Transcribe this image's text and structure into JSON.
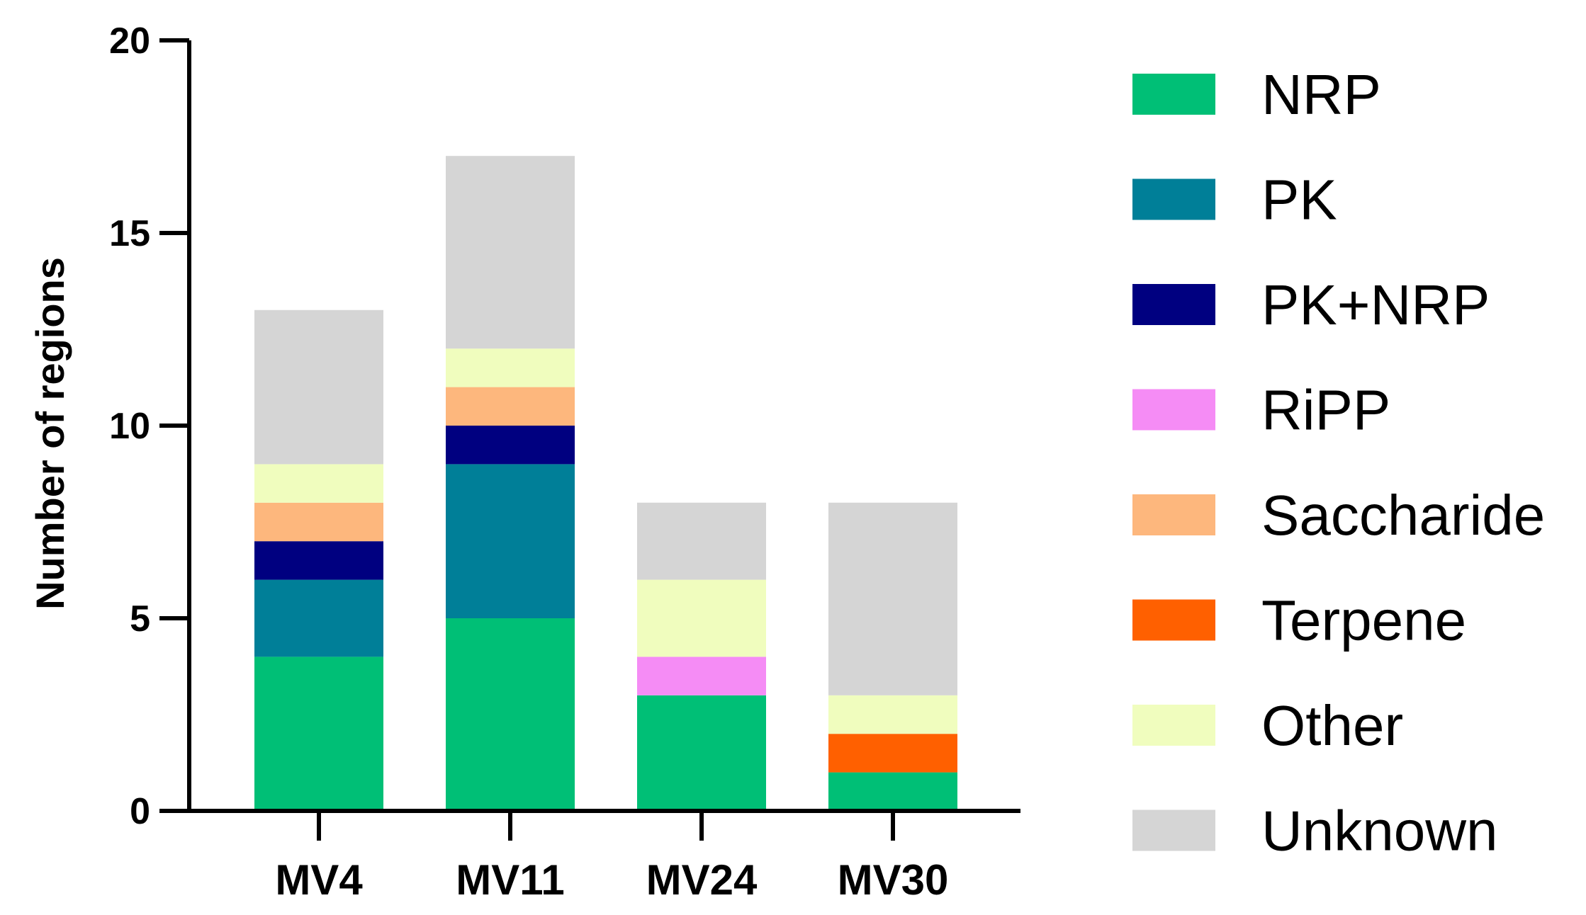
{
  "chart_data": {
    "type": "bar",
    "stacked": true,
    "title": "",
    "xlabel": "",
    "ylabel": "Number of regions",
    "ylim": [
      0,
      20
    ],
    "yticks": [
      0,
      5,
      10,
      15,
      20
    ],
    "ytick_labels": [
      "0",
      "5",
      "10",
      "15",
      "20"
    ],
    "grid": false,
    "legend_position": "right",
    "categories": [
      "MV4",
      "MV11",
      "MV24",
      "MV30"
    ],
    "series": [
      {
        "name": "NRP",
        "color": "#00BF76",
        "values": [
          4,
          5,
          3,
          1
        ]
      },
      {
        "name": "PK",
        "color": "#007F98",
        "values": [
          2,
          4,
          0,
          0
        ]
      },
      {
        "name": "PK+NRP",
        "color": "#000080",
        "values": [
          1,
          1,
          0,
          0
        ]
      },
      {
        "name": "RiPP",
        "color": "#F58CF5",
        "values": [
          0,
          0,
          1,
          0
        ]
      },
      {
        "name": "Saccharide",
        "color": "#FDB77D",
        "values": [
          1,
          1,
          0,
          0
        ]
      },
      {
        "name": "Terpene",
        "color": "#FF6000",
        "values": [
          0,
          0,
          0,
          1
        ]
      },
      {
        "name": "Other",
        "color": "#F0FDBE",
        "values": [
          1,
          1,
          2,
          1
        ]
      },
      {
        "name": "Unknown",
        "color": "#D5D5D5",
        "values": [
          4,
          5,
          2,
          5
        ]
      }
    ]
  }
}
